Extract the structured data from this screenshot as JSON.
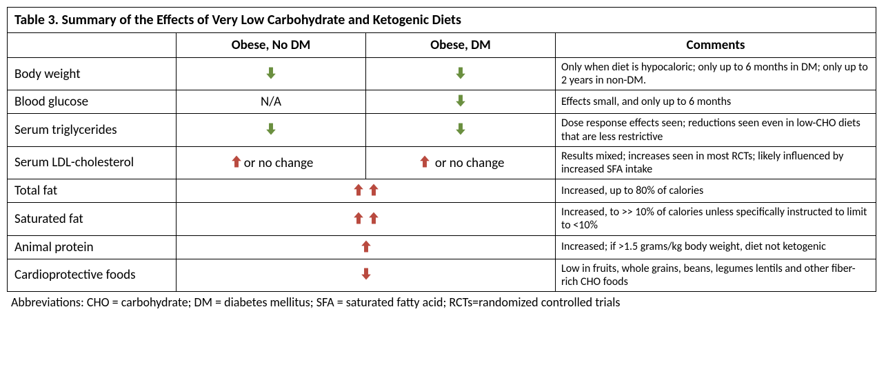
{
  "title": "Table 3.   Summary of the Effects of Very Low Carbohydrate and Ketogenic Diets",
  "headers": {
    "blank": "",
    "col1": "Obese, No DM",
    "col2": "Obese, DM",
    "col3": "Comments"
  },
  "arrows": {
    "down_green": {
      "color": "#6a8f3f",
      "type": "down"
    },
    "down_red": {
      "color": "#b94a3f",
      "type": "down"
    },
    "up_red": {
      "color": "#b94a3f",
      "type": "up"
    }
  },
  "rows": [
    {
      "label": "Body weight",
      "a": {
        "arrows": [
          "down_green"
        ],
        "text": ""
      },
      "b": {
        "arrows": [
          "down_green"
        ],
        "text": ""
      },
      "comment": "Only when diet is hypocaloric; only up to 6 months in DM; only up to 2 years in non-DM."
    },
    {
      "label": "Blood glucose",
      "a": {
        "arrows": [],
        "text": "N/A"
      },
      "b": {
        "arrows": [
          "down_green"
        ],
        "text": ""
      },
      "comment": "Effects small, and only up to 6 months"
    },
    {
      "label": "Serum triglycerides",
      "a": {
        "arrows": [
          "down_green"
        ],
        "text": ""
      },
      "b": {
        "arrows": [
          "down_green"
        ],
        "text": ""
      },
      "comment": "Dose response effects seen; reductions seen even in low-CHO diets that are less restrictive"
    },
    {
      "label": "Serum LDL-cholesterol",
      "a": {
        "arrows": [
          "up_red"
        ],
        "text": "or no change"
      },
      "b": {
        "arrows": [
          "up_red"
        ],
        "text": " or no change"
      },
      "comment": "Results mixed; increases seen in most RCTs; likely influenced by increased SFA intake"
    },
    {
      "label": "Total fat",
      "merged": {
        "arrows": [
          "up_red",
          "up_red"
        ],
        "text": ""
      },
      "comment": "Increased, up to 80% of calories"
    },
    {
      "label": "Saturated fat",
      "merged": {
        "arrows": [
          "up_red",
          "up_red"
        ],
        "text": ""
      },
      "comment": "Increased, to >> 10% of calories unless specifically instructed to limit to <10%"
    },
    {
      "label": "Animal protein",
      "merged": {
        "arrows": [
          "up_red"
        ],
        "text": ""
      },
      "comment": "Increased; if >1.5 grams/kg body weight, diet not ketogenic"
    },
    {
      "label": "Cardioprotective foods",
      "merged": {
        "arrows": [
          "down_red"
        ],
        "text": ""
      },
      "comment": "Low in fruits, whole grains, beans, legumes lentils and other fiber-rich CHO foods"
    }
  ],
  "abbreviations": "Abbreviations: CHO = carbohydrate;  DM = diabetes mellitus; SFA = saturated fatty acid; RCTs=randomized controlled trials",
  "style": {
    "border_color": "#000000",
    "background": "#ffffff",
    "title_fontsize": 20,
    "header_fontsize": 19,
    "label_fontsize": 19,
    "comment_fontsize": 16,
    "abbrev_fontsize": 18,
    "arrow_size": 22
  }
}
